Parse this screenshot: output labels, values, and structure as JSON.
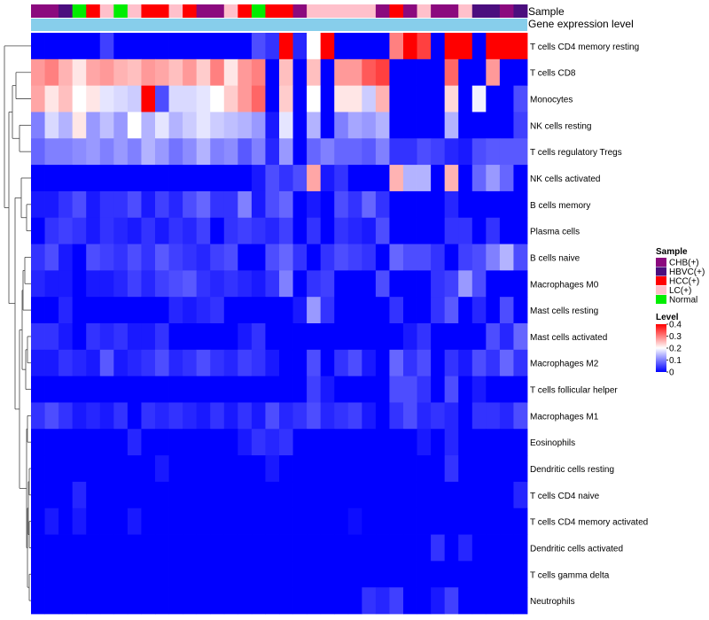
{
  "chart_data": {
    "type": "heatmap",
    "annotation_titles": [
      "Sample",
      "Gene expression level"
    ],
    "row_labels": [
      "T cells CD4 memory resting",
      "T cells CD8",
      "Monocytes",
      "NK cells resting",
      "T cells regulatory  Tregs",
      "NK cells activated",
      "B cells memory",
      "Plasma cells",
      "B cells naive",
      "Macrophages M0",
      "Mast cells resting",
      "Mast cells activated",
      "Macrophages M2",
      "T cells follicular helper",
      "Macrophages M1",
      "Eosinophils",
      "Dendritic cells resting",
      "T cells CD4 naive",
      "T cells CD4 memory activated",
      "Dendritic cells activated",
      "T cells gamma delta",
      "Neutrophils"
    ],
    "sample_groups": [
      "CHB",
      "CHB",
      "HBVC",
      "Normal",
      "HCC",
      "LC",
      "Normal",
      "LC",
      "HCC",
      "HCC",
      "LC",
      "HCC",
      "CHB",
      "CHB",
      "LC",
      "HCC",
      "Normal",
      "HCC",
      "HCC",
      "CHB",
      "LC",
      "LC",
      "LC",
      "LC",
      "LC",
      "CHB",
      "HCC",
      "CHB",
      "LC",
      "CHB",
      "CHB",
      "LC",
      "HBVC",
      "HBVC",
      "CHB",
      "HBVC"
    ],
    "sample_group_colors": {
      "CHB": "#8b0a7e",
      "HBVC": "#4b0e7e",
      "HCC": "#ff0000",
      "LC": "#ffc0cb",
      "Normal": "#00ee00"
    },
    "gene_expression_bar_color": "#87ceeb",
    "values": [
      [
        0,
        0,
        0,
        0,
        0,
        0.05,
        0,
        0,
        0,
        0,
        0,
        0,
        0,
        0,
        0,
        0,
        0.06,
        0.04,
        0.4,
        0.03,
        0.2,
        0.4,
        0,
        0,
        0,
        0,
        0.3,
        0.4,
        0.35,
        0,
        0.4,
        0.4,
        0,
        0.4,
        0.4,
        0.4
      ],
      [
        0.28,
        0.3,
        0.26,
        0.22,
        0.27,
        0.28,
        0.26,
        0.25,
        0.28,
        0.27,
        0.25,
        0.28,
        0.24,
        0.3,
        0.22,
        0.28,
        0.3,
        0,
        0.25,
        0,
        0.25,
        0,
        0.28,
        0.28,
        0.33,
        0.35,
        0,
        0,
        0,
        0,
        0.32,
        0,
        0,
        0.28,
        0,
        0
      ],
      [
        0.27,
        0.22,
        0.25,
        0.2,
        0.22,
        0.18,
        0.17,
        0.16,
        0.4,
        0.06,
        0.17,
        0.17,
        0.18,
        0.2,
        0.24,
        0.28,
        0.32,
        0,
        0.24,
        0,
        0.2,
        0,
        0.22,
        0.22,
        0.16,
        0.26,
        0,
        0,
        0,
        0,
        0.23,
        0,
        0.19,
        0,
        0,
        0.06
      ],
      [
        0.1,
        0.17,
        0.14,
        0.22,
        0.12,
        0.15,
        0.12,
        0.2,
        0.14,
        0.18,
        0.14,
        0.16,
        0.18,
        0.16,
        0.15,
        0.14,
        0.12,
        0.02,
        0.18,
        0,
        0.14,
        0,
        0.1,
        0.13,
        0.12,
        0.14,
        0,
        0,
        0,
        0,
        0.14,
        0,
        0,
        0,
        0,
        0.05
      ],
      [
        0.08,
        0.1,
        0.1,
        0.11,
        0.12,
        0.1,
        0.12,
        0.1,
        0.14,
        0.12,
        0.09,
        0.11,
        0.14,
        0.1,
        0.11,
        0.07,
        0.1,
        0.03,
        0.12,
        0,
        0.08,
        0.1,
        0.08,
        0.08,
        0.07,
        0.1,
        0.04,
        0.04,
        0.06,
        0.05,
        0.03,
        0.02,
        0.06,
        0.07,
        0.07,
        0.07
      ],
      [
        0,
        0,
        0,
        0,
        0,
        0,
        0,
        0,
        0,
        0,
        0,
        0,
        0,
        0,
        0,
        0,
        0.02,
        0.06,
        0.04,
        0.06,
        0.27,
        0.02,
        0.04,
        0,
        0,
        0,
        0.26,
        0.14,
        0.14,
        0,
        0.26,
        0,
        0.08,
        0.12,
        0.08,
        0
      ],
      [
        0.02,
        0.02,
        0.04,
        0.06,
        0.02,
        0.04,
        0.04,
        0.06,
        0.02,
        0.05,
        0.03,
        0.06,
        0.08,
        0.04,
        0.04,
        0.1,
        0.02,
        0.06,
        0.08,
        0,
        0.02,
        0,
        0.06,
        0.04,
        0.08,
        0.04,
        0,
        0,
        0,
        0,
        0.03,
        0,
        0,
        0,
        0,
        0
      ],
      [
        0,
        0.04,
        0.05,
        0.04,
        0.02,
        0.04,
        0.03,
        0.02,
        0.04,
        0.02,
        0.04,
        0.03,
        0.05,
        0,
        0.04,
        0.05,
        0.04,
        0.03,
        0.05,
        0,
        0.04,
        0,
        0.04,
        0.03,
        0.02,
        0.06,
        0,
        0,
        0,
        0,
        0.04,
        0.04,
        0,
        0.04,
        0,
        0
      ],
      [
        0.04,
        0.06,
        0.02,
        0,
        0.06,
        0.05,
        0.04,
        0.06,
        0.04,
        0.07,
        0.05,
        0.04,
        0.03,
        0.05,
        0.06,
        0,
        0,
        0.06,
        0.08,
        0.04,
        0,
        0.04,
        0.06,
        0.05,
        0.04,
        0,
        0.08,
        0.06,
        0.06,
        0.04,
        0,
        0.05,
        0.06,
        0.1,
        0.14,
        0.06
      ],
      [
        0.03,
        0.02,
        0.02,
        0,
        0.02,
        0.02,
        0.03,
        0.05,
        0.03,
        0.05,
        0.06,
        0.07,
        0.04,
        0.03,
        0.04,
        0.03,
        0.02,
        0.04,
        0.1,
        0,
        0.04,
        0.05,
        0,
        0,
        0,
        0.06,
        0,
        0,
        0,
        0.04,
        0.05,
        0.12,
        0.06,
        0,
        0,
        0
      ],
      [
        0,
        0,
        0.03,
        0,
        0,
        0,
        0,
        0,
        0,
        0,
        0.03,
        0.02,
        0.03,
        0.04,
        0,
        0,
        0,
        0,
        0,
        0.02,
        0.12,
        0.04,
        0,
        0,
        0,
        0,
        0.04,
        0,
        0,
        0.04,
        0.07,
        0,
        0.03,
        0,
        0.06,
        0
      ],
      [
        0.04,
        0.04,
        0.02,
        0,
        0.04,
        0.03,
        0.04,
        0.02,
        0.02,
        0.04,
        0,
        0,
        0,
        0,
        0,
        0.02,
        0.04,
        0,
        0,
        0,
        0,
        0,
        0,
        0,
        0,
        0,
        0,
        0.02,
        0.04,
        0,
        0,
        0,
        0,
        0.06,
        0.03,
        0.08
      ],
      [
        0.02,
        0.02,
        0.04,
        0.03,
        0.02,
        0.07,
        0.02,
        0.03,
        0.04,
        0.06,
        0.03,
        0.04,
        0.06,
        0.04,
        0.03,
        0.05,
        0.04,
        0.02,
        0,
        0,
        0.06,
        0,
        0.04,
        0.06,
        0.02,
        0,
        0.08,
        0.04,
        0.06,
        0,
        0.04,
        0.02,
        0.06,
        0.04,
        0.08,
        0.04
      ],
      [
        0,
        0,
        0,
        0,
        0,
        0,
        0,
        0,
        0,
        0,
        0,
        0,
        0,
        0,
        0,
        0,
        0,
        0,
        0,
        0,
        0.05,
        0.02,
        0,
        0,
        0,
        0,
        0.06,
        0.06,
        0.04,
        0,
        0.06,
        0,
        0.02,
        0,
        0,
        0
      ],
      [
        0.04,
        0.06,
        0.04,
        0.02,
        0.03,
        0.02,
        0.04,
        0,
        0.04,
        0.03,
        0.04,
        0.03,
        0.02,
        0.04,
        0.02,
        0.04,
        0.02,
        0.06,
        0.03,
        0.04,
        0.06,
        0.03,
        0.04,
        0.05,
        0.02,
        0,
        0.04,
        0.06,
        0.03,
        0.04,
        0.03,
        0,
        0.04,
        0.04,
        0.03,
        0.06
      ],
      [
        0,
        0,
        0,
        0,
        0,
        0,
        0,
        0.03,
        0,
        0,
        0,
        0,
        0,
        0,
        0,
        0.02,
        0.04,
        0.03,
        0.04,
        0,
        0,
        0,
        0,
        0,
        0,
        0,
        0,
        0,
        0.02,
        0,
        0.03,
        0,
        0,
        0,
        0,
        0
      ],
      [
        0,
        0,
        0,
        0,
        0,
        0,
        0,
        0,
        0,
        0.02,
        0,
        0,
        0,
        0,
        0,
        0,
        0,
        0.02,
        0,
        0,
        0,
        0,
        0,
        0,
        0,
        0,
        0,
        0,
        0,
        0,
        0.04,
        0,
        0,
        0,
        0,
        0
      ],
      [
        0,
        0,
        0,
        0.03,
        0,
        0,
        0,
        0,
        0,
        0,
        0,
        0,
        0,
        0,
        0,
        0,
        0,
        0,
        0,
        0,
        0,
        0,
        0,
        0,
        0,
        0,
        0,
        0,
        0,
        0,
        0,
        0,
        0,
        0,
        0,
        0.03
      ],
      [
        0,
        0.02,
        0,
        0.02,
        0,
        0,
        0,
        0.02,
        0,
        0,
        0,
        0,
        0,
        0,
        0,
        0,
        0,
        0,
        0,
        0,
        0,
        0,
        0,
        0.01,
        0,
        0,
        0,
        0,
        0,
        0,
        0,
        0,
        0,
        0,
        0,
        0
      ],
      [
        0,
        0,
        0,
        0,
        0,
        0,
        0,
        0,
        0,
        0,
        0,
        0,
        0,
        0,
        0,
        0,
        0,
        0,
        0,
        0,
        0,
        0,
        0,
        0,
        0,
        0,
        0,
        0,
        0,
        0.04,
        0,
        0.03,
        0,
        0,
        0,
        0
      ],
      [
        0,
        0,
        0,
        0,
        0,
        0,
        0,
        0,
        0,
        0,
        0,
        0,
        0,
        0,
        0,
        0,
        0,
        0,
        0,
        0,
        0,
        0,
        0,
        0,
        0,
        0,
        0,
        0,
        0,
        0,
        0,
        0,
        0,
        0,
        0,
        0
      ],
      [
        0,
        0,
        0,
        0,
        0,
        0,
        0,
        0,
        0,
        0,
        0,
        0,
        0,
        0,
        0,
        0,
        0,
        0,
        0,
        0,
        0,
        0,
        0,
        0,
        0.04,
        0.03,
        0.05,
        0,
        0,
        0.02,
        0.05,
        0,
        0,
        0,
        0,
        0
      ]
    ],
    "color_scale": {
      "stops": [
        {
          "value": 0,
          "color": "#0000ff"
        },
        {
          "value": 0.2,
          "color": "#ffffff"
        },
        {
          "value": 0.4,
          "color": "#ff0000"
        }
      ]
    },
    "legend_sample": {
      "title": "Sample",
      "items": [
        {
          "label": "CHB(+)",
          "group": "CHB"
        },
        {
          "label": "HBVC(+)",
          "group": "HBVC"
        },
        {
          "label": "HCC(+)",
          "group": "HCC"
        },
        {
          "label": "LC(+)",
          "group": "LC"
        },
        {
          "label": "Normal",
          "group": "Normal"
        }
      ]
    },
    "legend_level": {
      "title": "Level",
      "ticks": [
        "0.4",
        "0.3",
        "0.2",
        "0.1",
        "0"
      ],
      "tick_values": [
        0.4,
        0.3,
        0.2,
        0.1,
        0
      ]
    },
    "row_dendrogram": true
  }
}
